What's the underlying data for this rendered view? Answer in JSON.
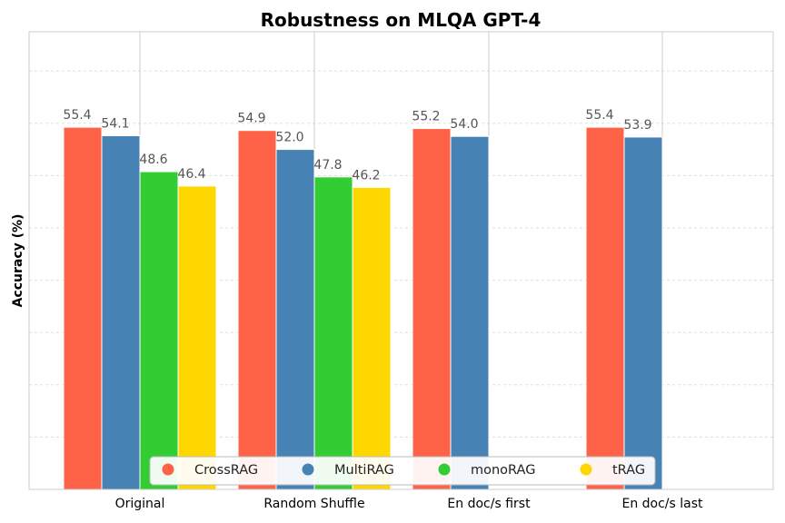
{
  "chart_data": {
    "type": "bar",
    "title": "Robustness on MLQA GPT-4",
    "xlabel": "",
    "ylabel": "Accuracy (%)",
    "ylim": [
      0,
      70
    ],
    "grid": true,
    "categories": [
      "Original",
      "Random Shuffle",
      "En doc/s first",
      "En doc/s last"
    ],
    "series": [
      {
        "name": "CrossRAG",
        "color": "#FF6347",
        "values": [
          55.4,
          54.9,
          55.2,
          55.4
        ]
      },
      {
        "name": "MultiRAG",
        "color": "#4682B4",
        "values": [
          54.1,
          52.0,
          54.0,
          53.9
        ]
      },
      {
        "name": "monoRAG",
        "color": "#32CD32",
        "values": [
          48.6,
          47.8,
          null,
          null
        ]
      },
      {
        "name": "tRAG",
        "color": "#FFD700",
        "values": [
          46.4,
          46.2,
          null,
          null
        ]
      }
    ],
    "legend_position": "bottom-center"
  }
}
